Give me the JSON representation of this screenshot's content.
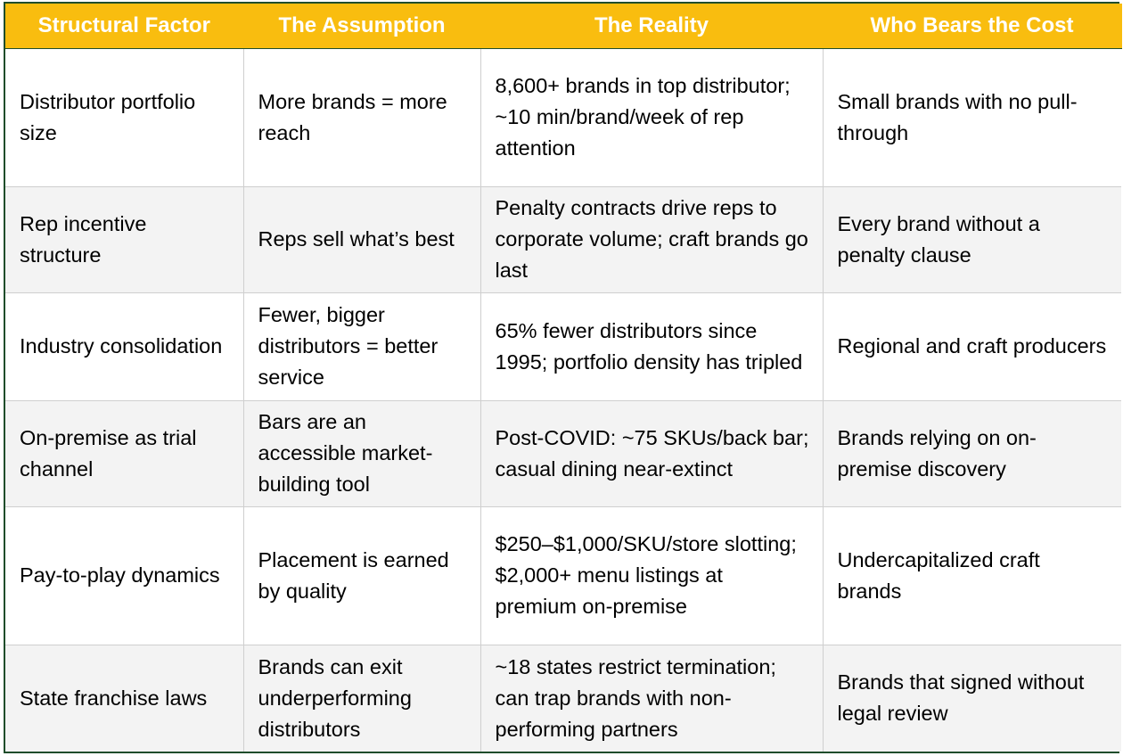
{
  "table": {
    "headers": [
      "Structural Factor",
      "The Assumption",
      "The Reality",
      "Who Bears the Cost"
    ],
    "rows": [
      {
        "factor": "Distributor portfolio size",
        "assumption": "More brands = more reach",
        "reality": "8,600+ brands in top distributor; ~10 min/brand/week of rep attention",
        "cost": "Small brands with no pull-through"
      },
      {
        "factor": "Rep incentive structure",
        "assumption": "Reps sell what’s best",
        "reality": "Penalty contracts drive reps to corporate volume; craft brands go last",
        "cost": "Every brand without a penalty clause"
      },
      {
        "factor": "Industry consolidation",
        "assumption": "Fewer, bigger distributors = better service",
        "reality": "65% fewer distributors since 1995; portfolio density has tripled",
        "cost": "Regional and craft producers"
      },
      {
        "factor": "On-premise as trial channel",
        "assumption": "Bars are an accessible market-building tool",
        "reality": "Post-COVID: ~75 SKUs/back bar; casual dining near-extinct",
        "cost": "Brands relying on on-premise discovery"
      },
      {
        "factor": "Pay-to-play dynamics",
        "assumption": "Placement is earned by quality",
        "reality": "$250–$1,000/SKU/store slotting; $2,000+ menu listings at premium on-premise",
        "cost": "Undercapitalized craft brands"
      },
      {
        "factor": "State franchise laws",
        "assumption": "Brands can exit underperforming distributors",
        "reality": "~18 states restrict termination; can trap brands with non-performing partners",
        "cost": "Brands that signed without legal review"
      }
    ]
  },
  "colors": {
    "header_bg": "#f9bd0f",
    "header_text": "#ffffff",
    "border": "#1f4d2b",
    "stripe": "#f3f3f3"
  }
}
